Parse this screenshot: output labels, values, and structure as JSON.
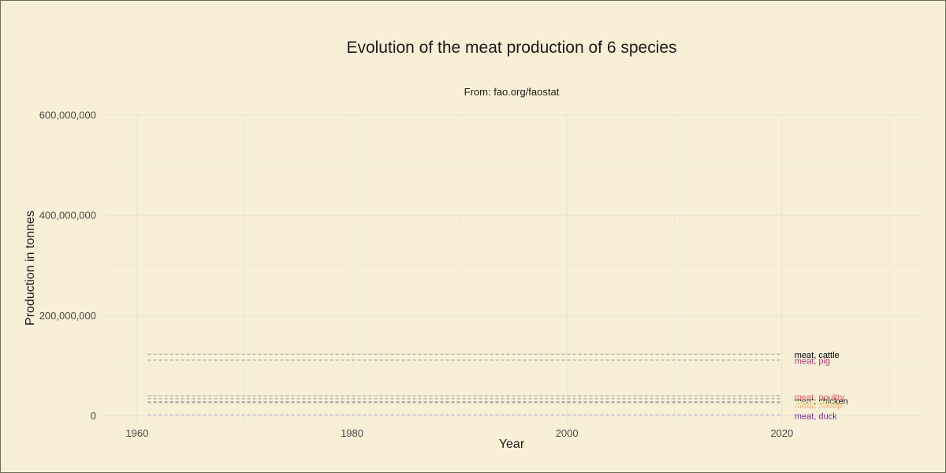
{
  "chart_data": {
    "type": "line",
    "title": "Evolution of the meat production of 6 species",
    "subtitle": "From: fao.org/faostat",
    "xlabel": "Year",
    "ylabel": "Production in tonnes",
    "xlim": [
      1957,
      2033
    ],
    "ylim": [
      -15000000,
      600000000
    ],
    "x_ticks": [
      1960,
      1980,
      2000,
      2020
    ],
    "x_tick_labels": [
      "1960",
      "1980",
      "2000",
      "2020"
    ],
    "x_minor_ticks": [
      1970,
      1990,
      2010,
      2030
    ],
    "y_ticks": [
      0,
      200000000,
      400000000,
      600000000
    ],
    "y_tick_labels": [
      "0",
      "200,000,000",
      "400,000,000",
      "600,000,000"
    ],
    "y_minor_ticks": [
      100000000,
      300000000,
      500000000
    ],
    "grid": true,
    "legend": "direct labels at right end of lines",
    "x_range": [
      1961,
      2020
    ],
    "series": [
      {
        "name": "meat, cattle",
        "value": 123000000,
        "label_y": 122000000,
        "color": "#000004",
        "label_color": "#000004"
      },
      {
        "name": "meat, pig",
        "value": 111000000,
        "label_y": 110000000,
        "color": "#8c2981",
        "label_color": "#b5367a"
      },
      {
        "name": "meat, poultry",
        "value": 40000000,
        "label_y": 38000000,
        "color": "#de4968",
        "label_color": "#e8566a"
      },
      {
        "name": "meat, chicken",
        "value": 34000000,
        "label_y": 30000000,
        "color": "#000004",
        "label_color": "#1a1a1a"
      },
      {
        "name": "meat, sheep",
        "value": 26000000,
        "label_y": 22000000,
        "color": "#fe9f6d",
        "label_color": "#f7a26c"
      },
      {
        "name": "meat, goat",
        "value": 28000000,
        "label_y": 27000000,
        "color": "#fcfdbf",
        "label_color": "#fcf6b0"
      },
      {
        "name": "meat, duck",
        "value": 2000000,
        "label_y": 0,
        "color": "#3b0f70",
        "label_color": "#7a2a9a"
      }
    ],
    "colors": {
      "background": "#f8f0d6",
      "grid": "#e9e4d6",
      "line": "#9a9a9a"
    }
  }
}
